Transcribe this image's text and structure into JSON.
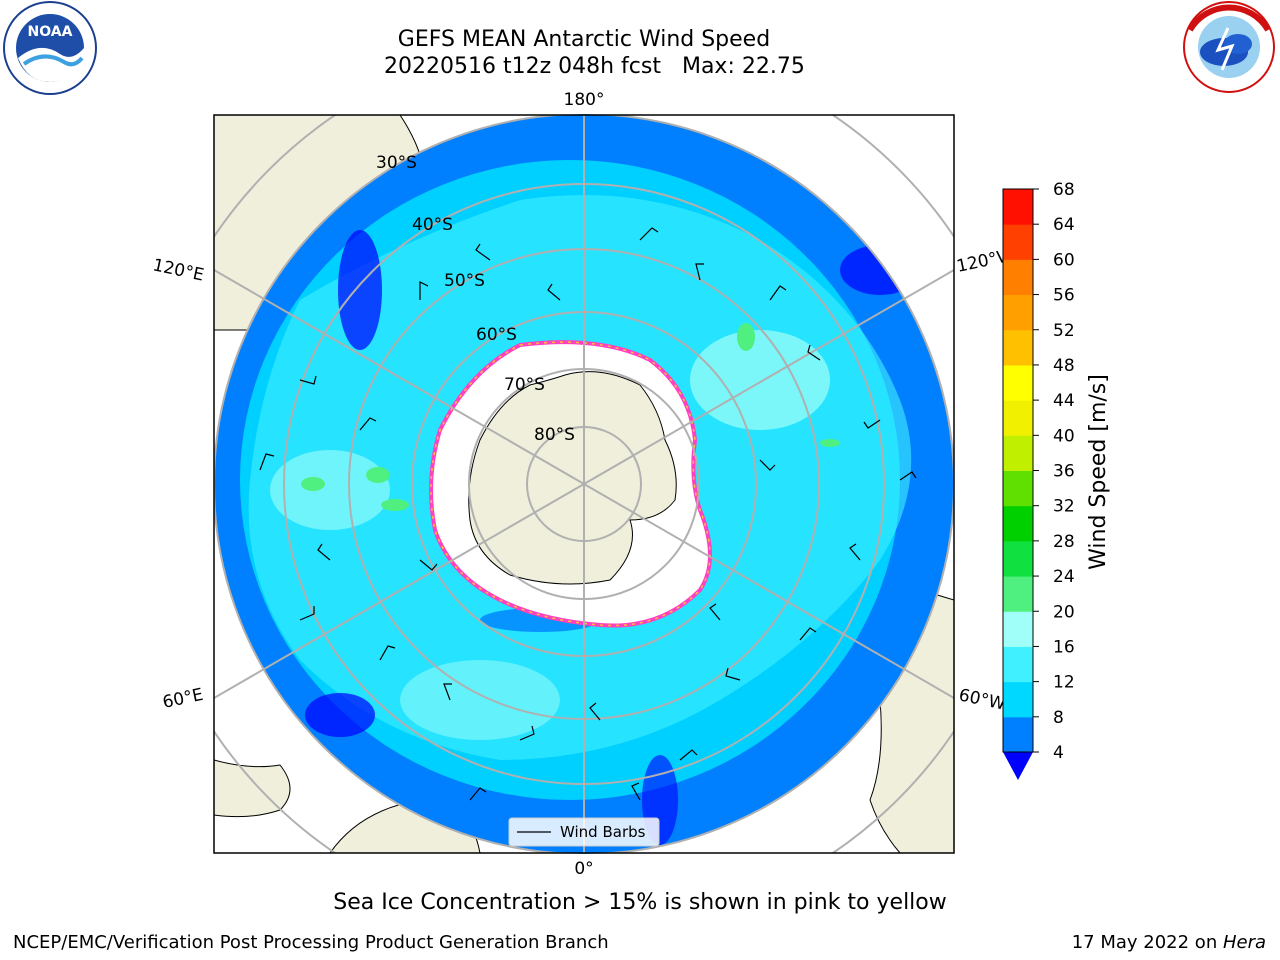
{
  "header": {
    "title_line1": "GEFS MEAN Antarctic Wind Speed",
    "title_line2": "20220516 t12z 048h fcst   Max: 22.75"
  },
  "logos": {
    "left": {
      "text": "NOAA",
      "ring_text": "NATIONAL OCEANIC AND ATMOSPHERIC ADMINISTRATION · U.S. DEPARTMENT OF COMMERCE"
    },
    "right": {
      "ring_text": "NATIONAL WEATHER SERVICE"
    }
  },
  "map": {
    "longitude_labels": {
      "top": "180°",
      "bottom": "0°",
      "upper_left": "120°E",
      "upper_right": "120°W",
      "lower_left": "60°E",
      "lower_right": "60°W"
    },
    "latitude_labels": [
      "30°S",
      "40°S",
      "50°S",
      "60°S",
      "70°S",
      "80°S"
    ],
    "legend": {
      "label": "Wind Barbs"
    }
  },
  "colorbar": {
    "label": "Wind Speed [m/s]",
    "ticks": [
      "4",
      "8",
      "12",
      "16",
      "20",
      "24",
      "28",
      "32",
      "36",
      "40",
      "44",
      "48",
      "52",
      "56",
      "60",
      "64",
      "68"
    ],
    "colors": [
      "#0080ff",
      "#00d8ff",
      "#40f0ff",
      "#a0fff8",
      "#50f080",
      "#10e040",
      "#00d000",
      "#60e000",
      "#c0f000",
      "#f0f000",
      "#ffff00",
      "#ffc000",
      "#ffa000",
      "#ff8000",
      "#ff4000",
      "#ff1000"
    ],
    "under_color": "#0000ff"
  },
  "bottom_note": "Sea Ice Concentration > 15% is shown in pink to yellow",
  "footer": {
    "left": "NCEP/EMC/Verification Post Processing Product Generation Branch",
    "right_prefix": "17 May 2022 on ",
    "right_italic": "Hera"
  }
}
